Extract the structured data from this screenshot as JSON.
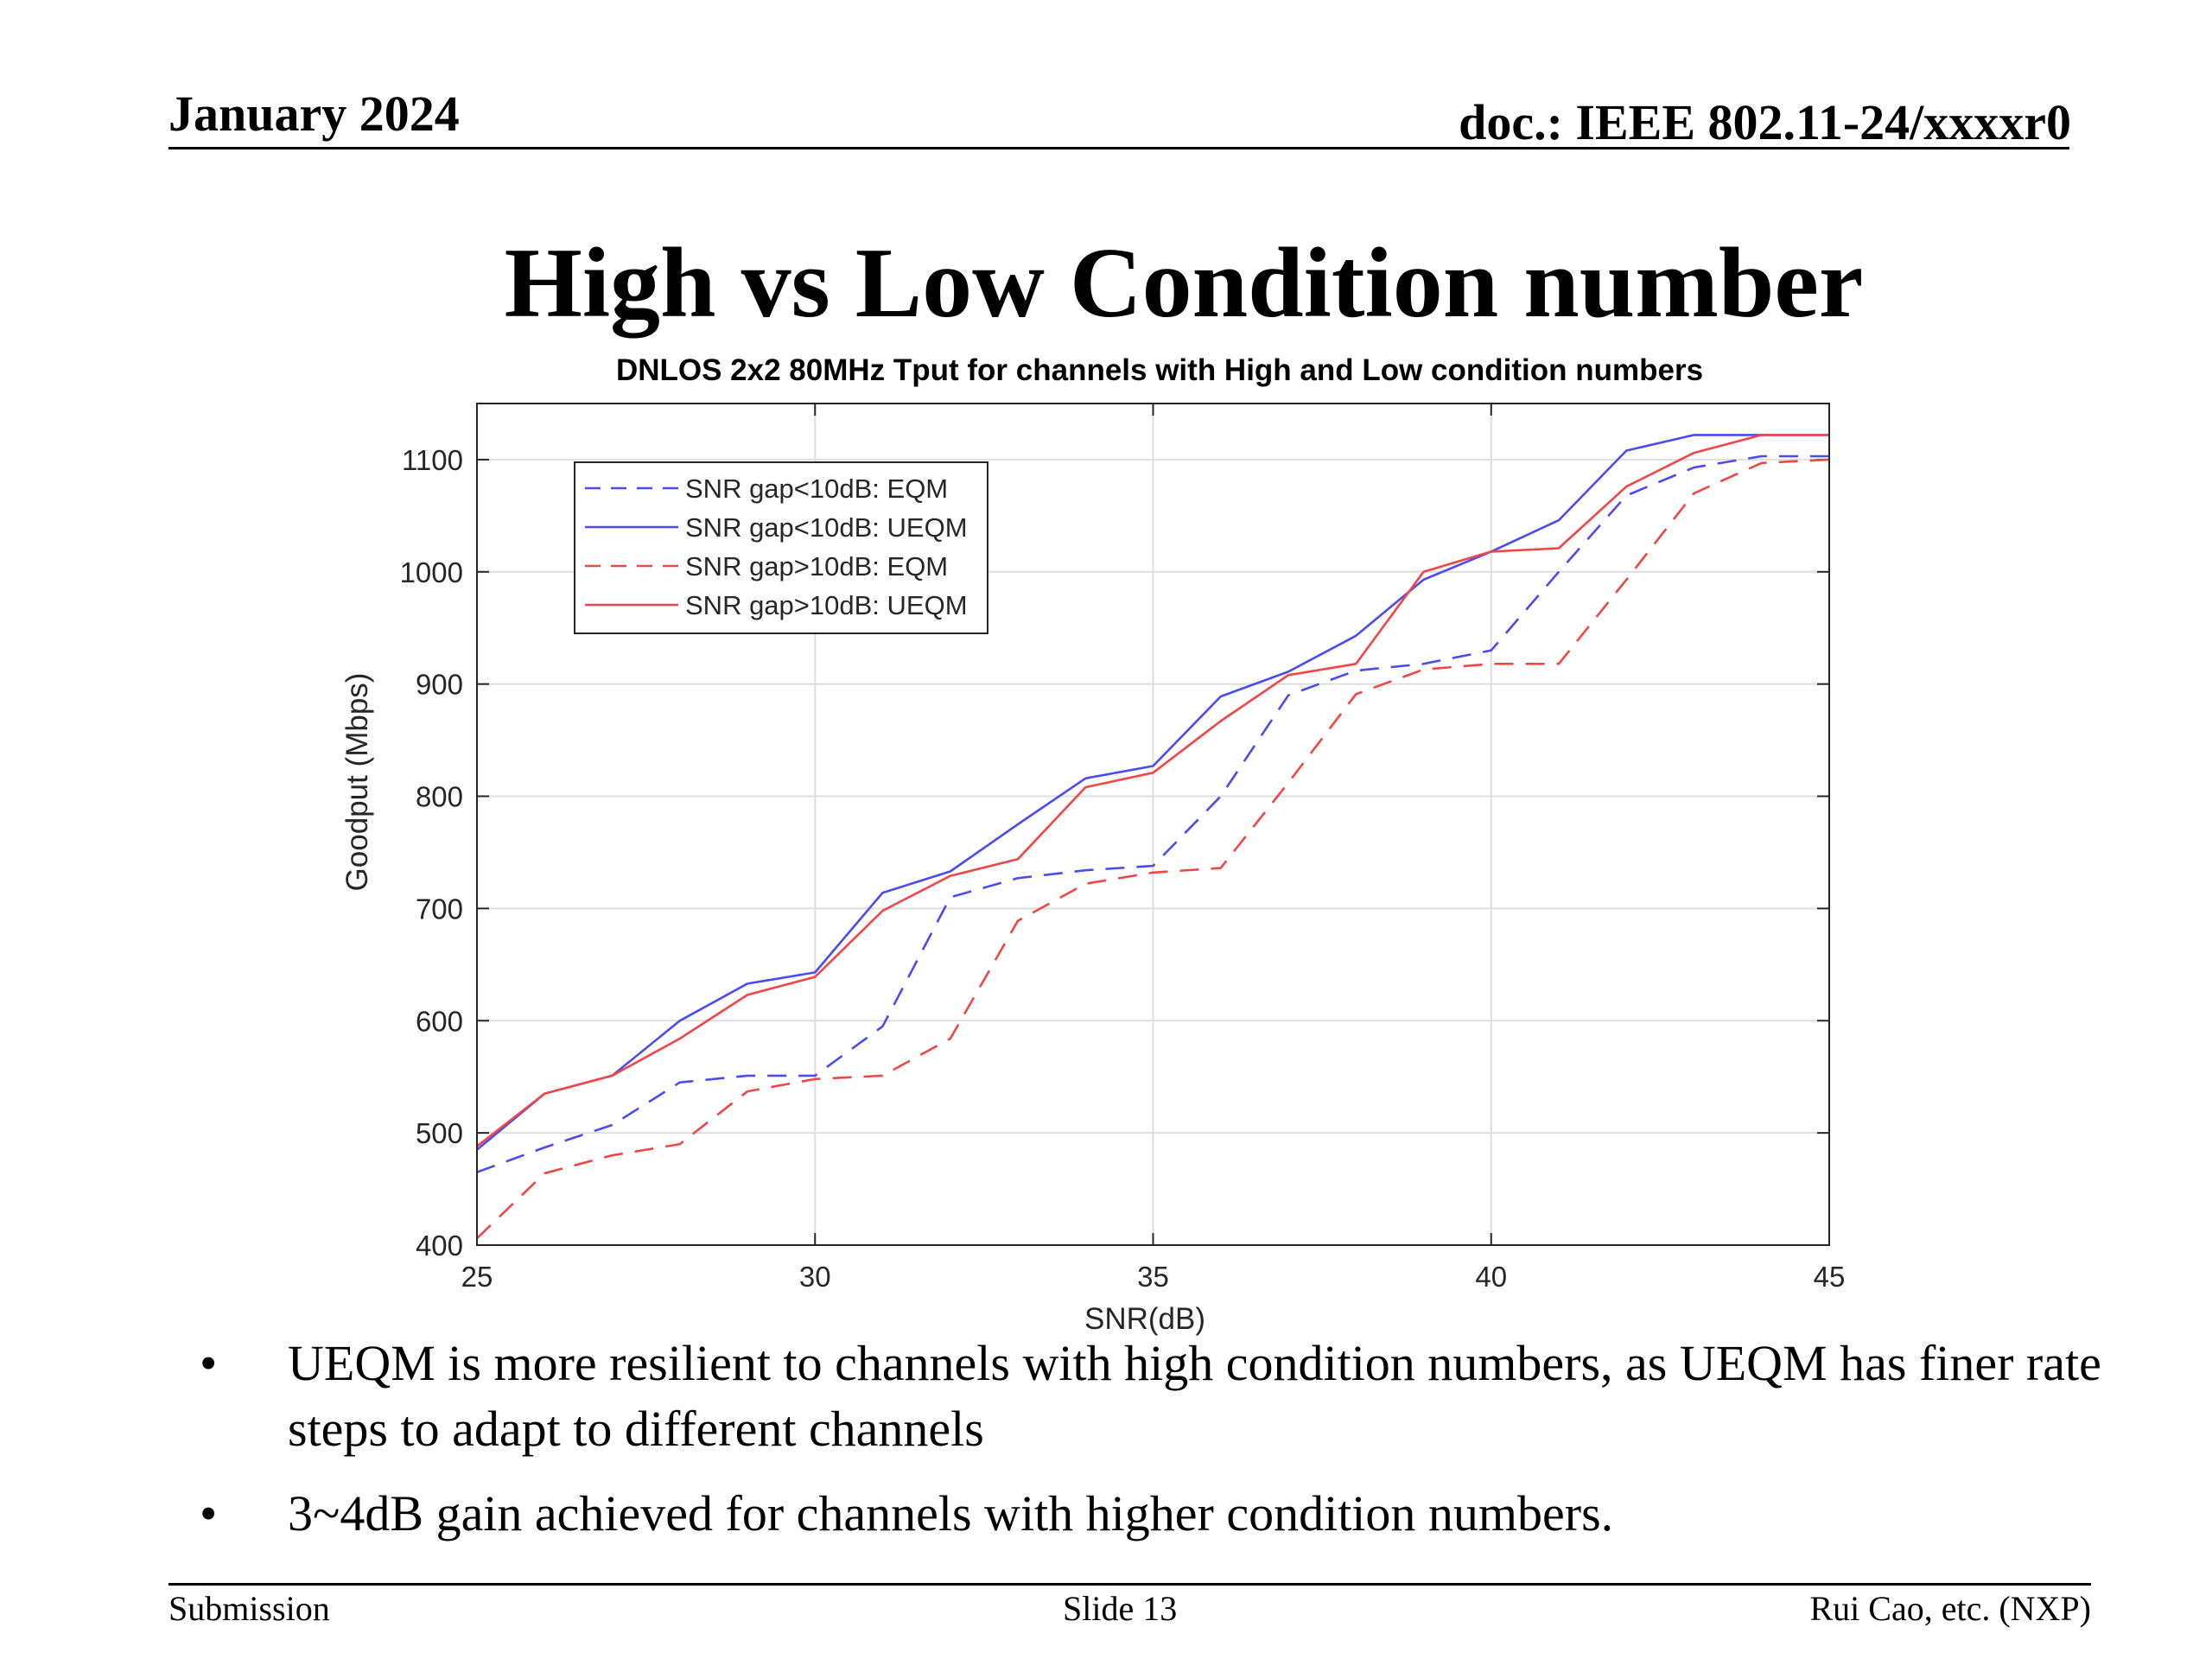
{
  "header": {
    "date": "January 2024",
    "doc": "doc.: IEEE 802.11-24/xxxxr0"
  },
  "slide": {
    "title": "High vs Low Condition number",
    "bullets": [
      "UEQM is more resilient to channels with high condition numbers, as UEQM has finer rate steps to adapt to different channels",
      "3~4dB gain achieved for channels with higher condition numbers."
    ],
    "bullet_symbol": "•"
  },
  "footer": {
    "left": "Submission",
    "center": "Slide 13",
    "right": "Rui Cao, etc. (NXP)"
  },
  "chart_data": {
    "type": "line",
    "title": "DNLOS 2x2 80MHz Tput for channels with High and Low condition numbers",
    "xlabel": "SNR(dB)",
    "ylabel": "Goodput (Mbps)",
    "xlim": [
      25,
      45
    ],
    "ylim": [
      400,
      1150
    ],
    "xticks": [
      25,
      30,
      35,
      40,
      45
    ],
    "yticks": [
      400,
      500,
      600,
      700,
      800,
      900,
      1000,
      1100
    ],
    "grid": true,
    "legend_position": "top-left",
    "x": [
      25,
      26,
      27,
      28,
      29,
      30,
      31,
      32,
      33,
      34,
      35,
      36,
      37,
      38,
      39,
      40,
      41,
      42,
      43,
      44,
      45
    ],
    "series": [
      {
        "name": "SNR gap<10dB: EQM",
        "color": "#4b4bf0",
        "dash": true,
        "values": [
          465,
          487,
          507,
          545,
          551,
          551,
          595,
          710,
          727,
          734,
          738,
          800,
          890,
          912,
          918,
          930,
          1000,
          1068,
          1093,
          1103,
          1103
        ]
      },
      {
        "name": "SNR gap<10dB: UEQM",
        "color": "#4b4bf0",
        "dash": false,
        "values": [
          485,
          535,
          551,
          600,
          633,
          643,
          714,
          733,
          775,
          816,
          827,
          889,
          911,
          943,
          993,
          1018,
          1046,
          1108,
          1122,
          1122,
          1122
        ]
      },
      {
        "name": "SNR gap>10dB: EQM",
        "color": "#f04646",
        "dash": true,
        "values": [
          406,
          464,
          480,
          490,
          537,
          548,
          551,
          584,
          689,
          722,
          732,
          736,
          812,
          891,
          913,
          918,
          918,
          993,
          1070,
          1097,
          1100
        ]
      },
      {
        "name": "SNR gap>10dB: UEQM",
        "color": "#f04646",
        "dash": false,
        "values": [
          488,
          535,
          551,
          584,
          623,
          639,
          698,
          729,
          744,
          808,
          821,
          867,
          908,
          918,
          1000,
          1018,
          1021,
          1076,
          1106,
          1122,
          1122
        ]
      }
    ]
  }
}
